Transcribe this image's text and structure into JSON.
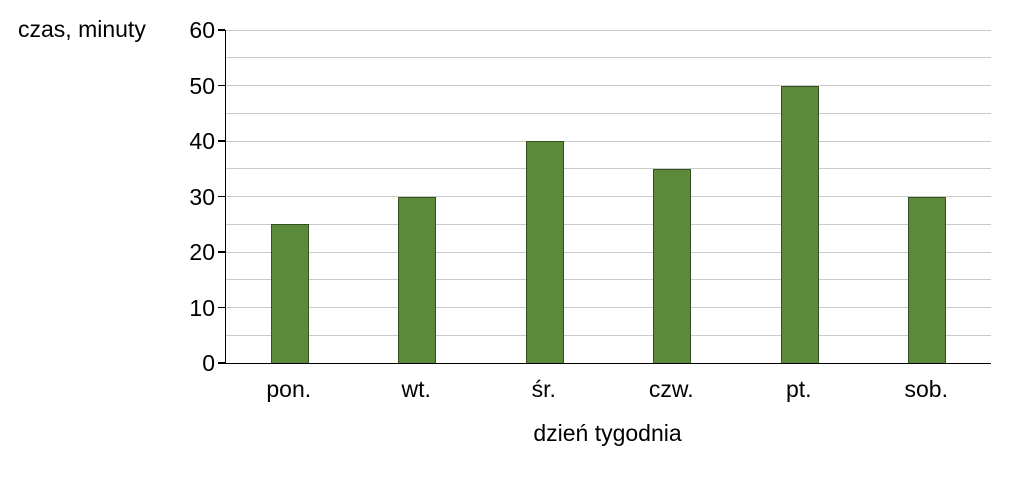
{
  "chart_data": {
    "type": "bar",
    "title": "",
    "ylabel": "czas, minuty",
    "xlabel": "dzień tygodnia",
    "categories": [
      "pon.",
      "wt.",
      "śr.",
      "czw.",
      "pt.",
      "sob."
    ],
    "values": [
      25,
      30,
      40,
      35,
      50,
      30
    ],
    "ylim": [
      0,
      60
    ],
    "ytick_step": 10,
    "grid_step": 5,
    "grid_on": true,
    "legend_position": "none",
    "bar_fill_color": "#5a8a3a",
    "bar_border_color": "#33501e",
    "grid_color": "#c9c9c9"
  }
}
